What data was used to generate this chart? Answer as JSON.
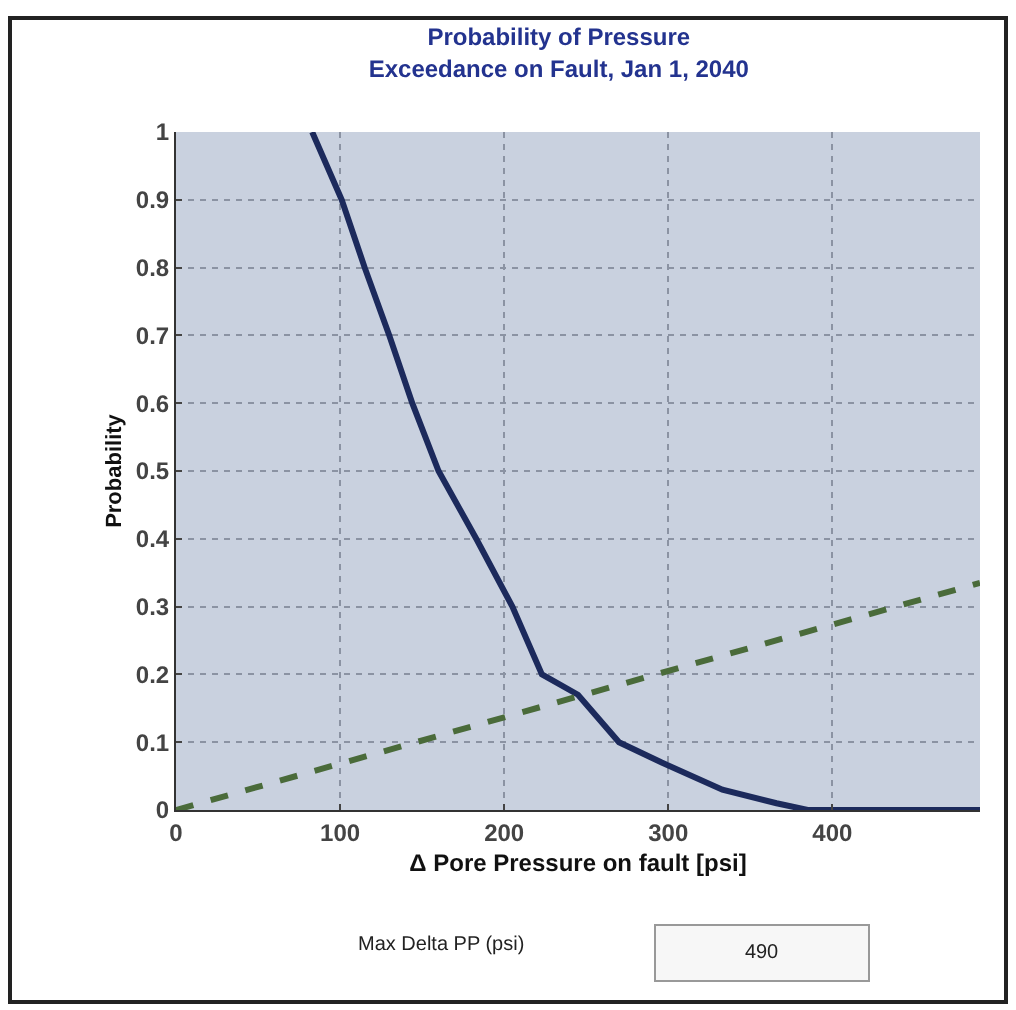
{
  "chart_data": {
    "type": "line",
    "title": "Probability of Pressure\nExceedance on Fault, Jan 1, 2040",
    "xlabel": "Δ Pore Pressure on fault [psi]",
    "ylabel": "Probability",
    "series": [
      {
        "color": "#1c2a5c",
        "line_style": "solid",
        "x": [
          83,
          101,
          115,
          130,
          144,
          160,
          183,
          205,
          223,
          245,
          270,
          296,
          333,
          366,
          385,
          490
        ],
        "values": [
          1,
          0.9,
          0.8,
          0.7,
          0.6,
          0.5,
          0.4,
          0.3,
          0.2,
          0.17,
          0.1,
          0.07,
          0.03,
          0.01,
          0,
          0
        ]
      },
      {
        "color": "#4a6b3a",
        "line_style": "dashed",
        "x": [
          0,
          490
        ],
        "values": [
          0,
          0.335
        ]
      }
    ],
    "xlim": [
      0,
      490
    ],
    "xticks": [
      0,
      100,
      200,
      300,
      400
    ],
    "ylim": [
      0,
      1
    ],
    "yticks": [
      0,
      0.1,
      0.2,
      0.3,
      0.4,
      0.5,
      0.6,
      0.7,
      0.8,
      0.9,
      1
    ],
    "grid": true,
    "annotations": [
      "Max Delta PP (psi)",
      "490"
    ]
  }
}
